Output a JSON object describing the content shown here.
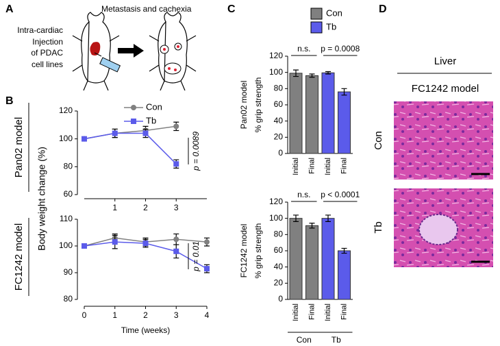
{
  "panels": {
    "a": {
      "letter": "A",
      "title": "Metastasis and cachexia",
      "injection": [
        "Intra-cardiac",
        "Injection",
        "of PDAC",
        "cell lines"
      ]
    },
    "b": {
      "letter": "B",
      "row_labels": [
        "Pan02 model",
        "FC1242 model"
      ],
      "ylabel": "Body  weight change (%)"
    },
    "c": {
      "letter": "C"
    },
    "d": {
      "letter": "D",
      "tissue": "Liver",
      "model": "FC1242 model",
      "rows": [
        "Con",
        "Tb"
      ]
    }
  },
  "chart_data": [
    {
      "type": "line",
      "x": [
        0,
        1,
        2,
        3
      ],
      "xlim": [
        0,
        4
      ],
      "xticks": [
        1,
        2,
        3
      ],
      "ylim": [
        60,
        120
      ],
      "yticks": [
        60,
        80,
        100,
        120
      ],
      "series": [
        {
          "name": "Con",
          "color": "#808080",
          "values": [
            100,
            104,
            106,
            109
          ],
          "errors": [
            1,
            3,
            3,
            3
          ]
        },
        {
          "name": "Tb",
          "color": "#5b5bea",
          "values": [
            100,
            104,
            104,
            82
          ],
          "errors": [
            1,
            3,
            3,
            3
          ]
        }
      ],
      "annotations": [
        "p = 0.0089"
      ]
    },
    {
      "type": "line",
      "x": [
        0,
        1,
        2,
        3,
        4
      ],
      "xlim": [
        0,
        4
      ],
      "xticks": [
        0,
        1,
        2,
        3,
        4
      ],
      "ylim": [
        80,
        110
      ],
      "yticks": [
        80,
        90,
        100,
        110
      ],
      "xlabel": "Time (weeks)",
      "series": [
        {
          "color": "#808080",
          "values": [
            100,
            103,
            101.5,
            102.5,
            101.5
          ],
          "errors": [
            0.5,
            1.5,
            1.5,
            2,
            1.5
          ]
        },
        {
          "color": "#5b5bea",
          "values": [
            100,
            101.5,
            101,
            98,
            91.5
          ],
          "errors": [
            0.5,
            2.5,
            1.5,
            2.5,
            1.5
          ]
        }
      ],
      "annotations": [
        "p = 0.01"
      ]
    },
    {
      "type": "bar",
      "title": "Pan02 model",
      "ylabel": "% grip strength",
      "categories": [
        "Initial",
        "Final",
        "Initial",
        "Final"
      ],
      "ylim": [
        0,
        120
      ],
      "yticks": [
        0,
        20,
        40,
        60,
        80,
        100,
        120
      ],
      "series": [
        {
          "name": "Con",
          "color": "#808080",
          "values": [
            99,
            96,
            null,
            null
          ],
          "errors": [
            4,
            2,
            null,
            null
          ]
        },
        {
          "name": "Tb",
          "color": "#5b5bea",
          "values": [
            null,
            null,
            99.5,
            76
          ],
          "errors": [
            null,
            null,
            1.5,
            4
          ]
        }
      ],
      "annotations": [
        "n.s.",
        "p = 0.0008"
      ]
    },
    {
      "type": "bar",
      "title": "FC1242 model",
      "ylabel": "% grip strength",
      "categories": [
        "Initial",
        "Final",
        "Initial",
        "Final"
      ],
      "ylim": [
        0,
        120
      ],
      "yticks": [
        0,
        20,
        40,
        60,
        80,
        100,
        120
      ],
      "series": [
        {
          "color": "#808080",
          "values": [
            100,
            91,
            null,
            null
          ],
          "errors": [
            4,
            3,
            null,
            null
          ]
        },
        {
          "color": "#5b5bea",
          "values": [
            null,
            null,
            100,
            60
          ],
          "errors": [
            null,
            null,
            4,
            3
          ]
        }
      ],
      "groups": [
        "Con",
        "Tb"
      ],
      "annotations": [
        "n.s.",
        "p < 0.0001"
      ]
    }
  ]
}
